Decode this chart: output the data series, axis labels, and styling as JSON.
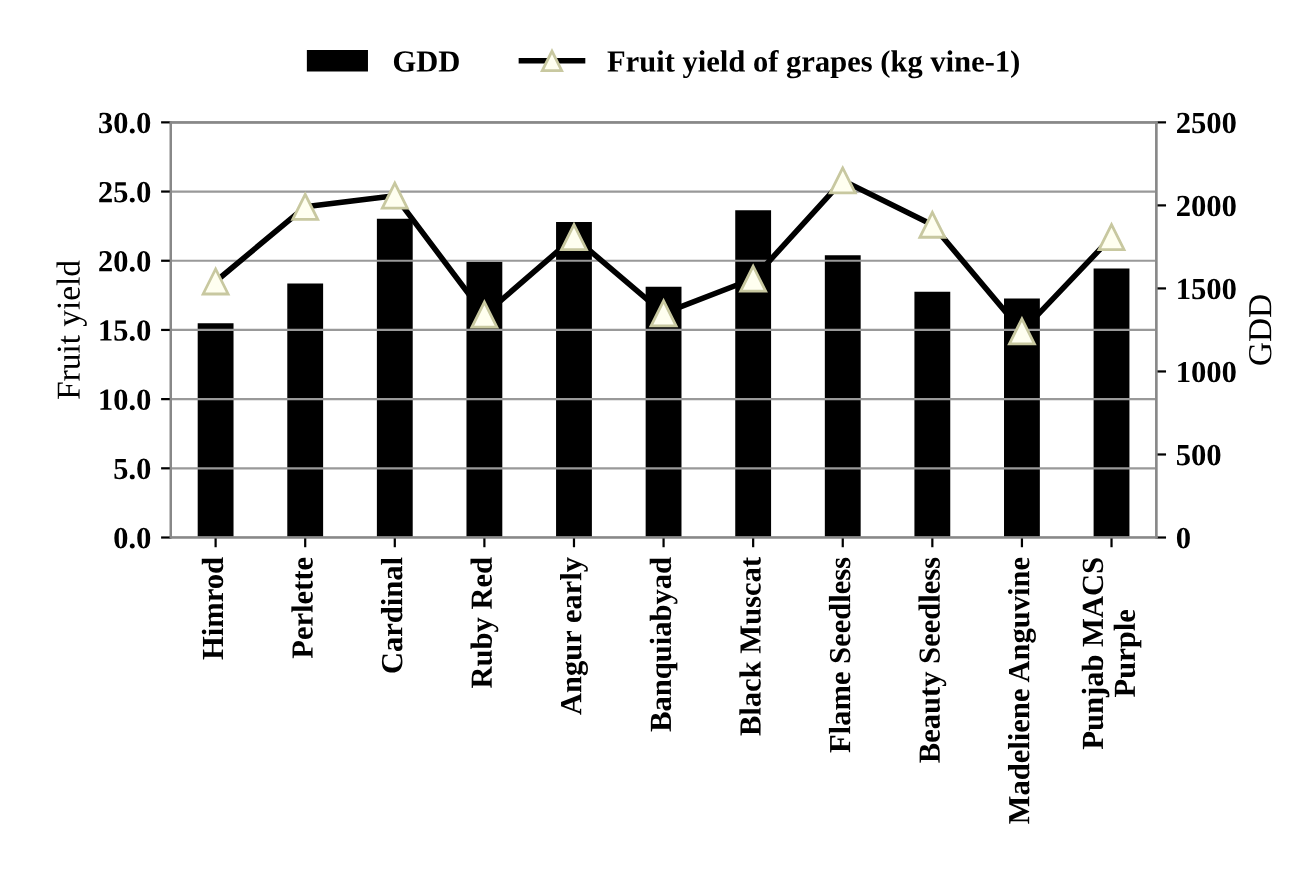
{
  "chart_data": {
    "type": "bar",
    "categories": [
      "Himrod",
      "Perlette",
      "Cardinal",
      "Ruby Red",
      "Angur early",
      "Banquiabyad",
      "Black Muscat",
      "Flame Seedless",
      "Beauty Seedless",
      "Madeliene Anguvine",
      "Punjab MACS\nPurple"
    ],
    "series": [
      {
        "name": "GDD",
        "axis": "y2",
        "color": "#000000",
        "values": [
          1290,
          1530,
          1920,
          1660,
          1900,
          1510,
          1970,
          1700,
          1480,
          1440,
          1620
        ]
      },
      {
        "name": "Fruit yield of grapes (kg vine-1)",
        "type": "line",
        "color": "#000000",
        "marker": "triangle",
        "values": [
          18.5,
          23.9,
          24.7,
          16.1,
          21.7,
          16.2,
          18.7,
          25.8,
          22.6,
          14.9,
          21.7
        ]
      }
    ],
    "ylabel": "Fruit yield",
    "y2label": "GDD",
    "ylim": [
      0,
      30
    ],
    "yticks": [
      {
        "value": 0,
        "label": "0.0"
      },
      {
        "value": 5,
        "label": "5.0"
      },
      {
        "value": 10,
        "label": "10.0"
      },
      {
        "value": 15,
        "label": "15.0"
      },
      {
        "value": 20,
        "label": "20.0"
      },
      {
        "value": 25,
        "label": "25.0"
      },
      {
        "value": 30,
        "label": "30.0"
      }
    ],
    "y2lim": [
      0,
      2500
    ],
    "y2ticks": [
      0,
      500,
      1000,
      1500,
      2000,
      2500
    ],
    "grid": "y",
    "legend": "top"
  }
}
